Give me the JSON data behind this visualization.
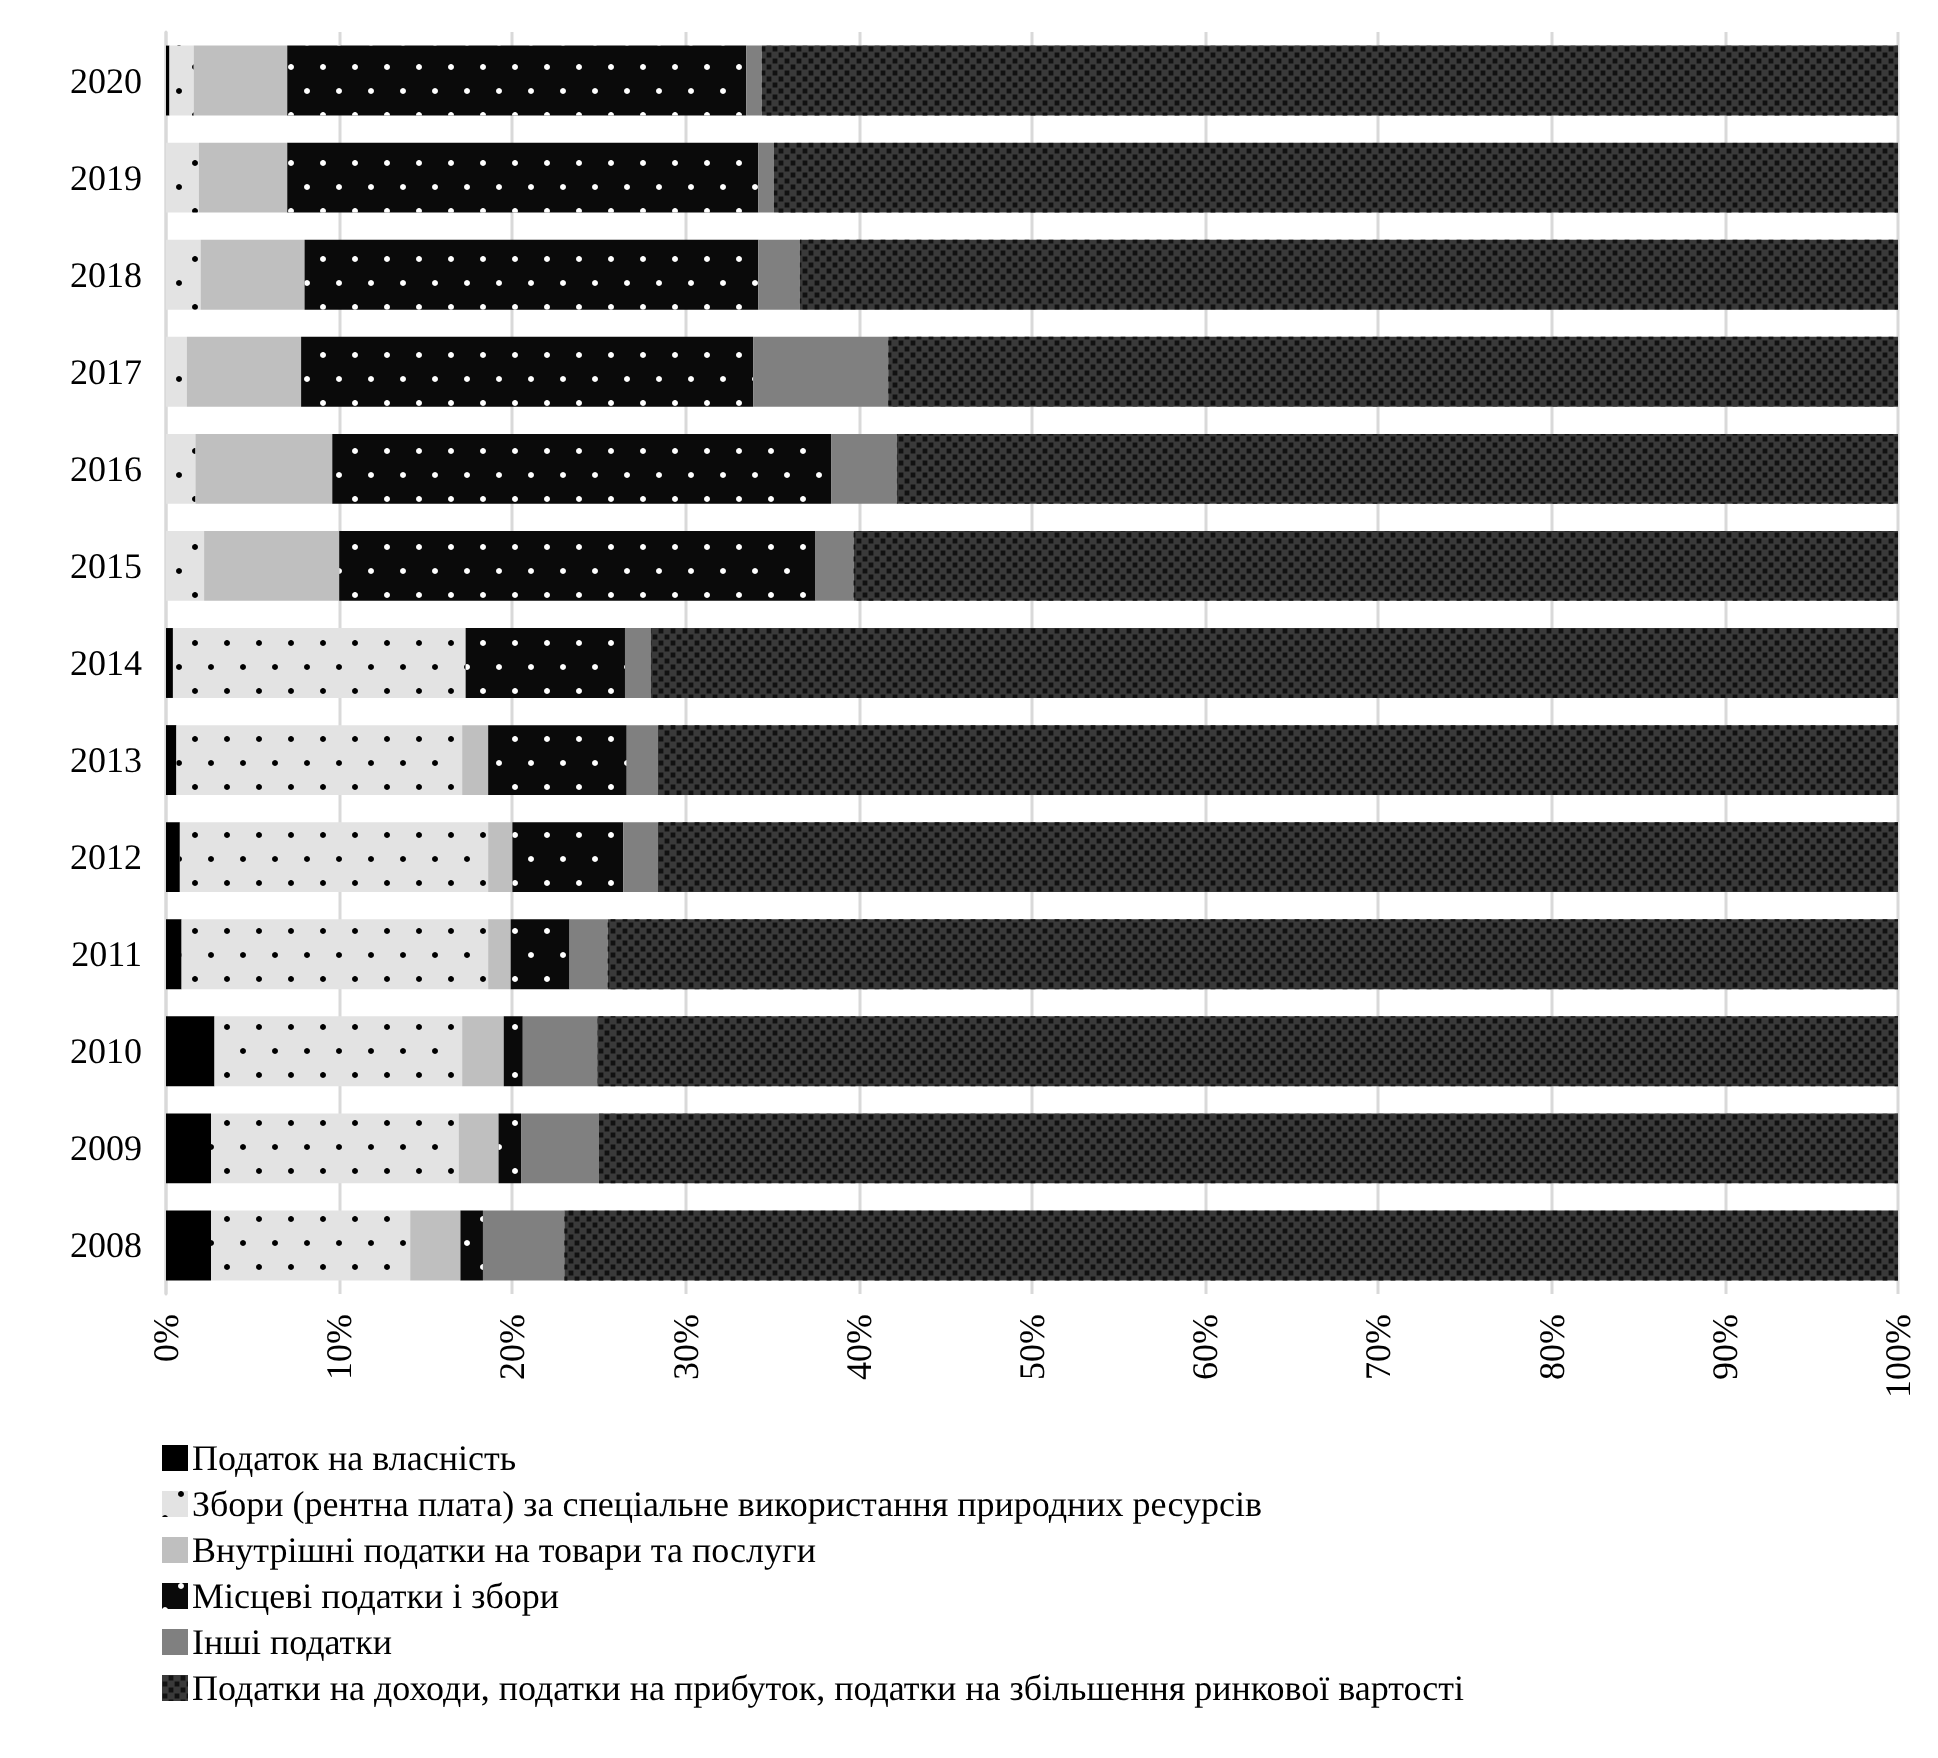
{
  "chart_data": {
    "type": "bar",
    "orientation": "horizontal",
    "stacked": true,
    "categories": [
      "2020",
      "2019",
      "2018",
      "2017",
      "2016",
      "2015",
      "2014",
      "2013",
      "2012",
      "2011",
      "2010",
      "2009",
      "2008"
    ],
    "series": [
      {
        "name": "Податок на власність",
        "color": "#000000",
        "values": [
          0.2,
          0,
          0,
          0,
          0,
          0,
          0.4,
          0.6,
          0.8,
          0.9,
          2.8,
          2.6,
          2.6
        ]
      },
      {
        "name": "Збори (рентна плата) за спеціальне використання природних ресурсів",
        "color": "#e3e3e3",
        "values": [
          1.4,
          1.9,
          2.0,
          1.2,
          1.7,
          2.2,
          16.9,
          16.5,
          17.8,
          17.7,
          14.3,
          14.3,
          11.5
        ]
      },
      {
        "name": "Внутрішні податки на товари та послуги",
        "color": "#bfbfbf",
        "values": [
          5.4,
          5.1,
          6.0,
          6.6,
          7.9,
          7.8,
          0,
          1.5,
          1.4,
          1.3,
          2.4,
          2.3,
          2.9
        ]
      },
      {
        "name": "Місцеві податки і збори",
        "color": "#0a0a0a",
        "values": [
          26.5,
          27.2,
          26.2,
          26.1,
          28.8,
          27.5,
          9.2,
          8.0,
          6.4,
          3.4,
          1.1,
          1.3,
          1.3
        ]
      },
      {
        "name": "Інші податки",
        "color": "#808080",
        "values": [
          0.9,
          0.9,
          2.4,
          7.8,
          3.8,
          2.2,
          1.5,
          1.8,
          2.0,
          2.2,
          4.3,
          4.5,
          4.7
        ]
      },
      {
        "name": "Податки на доходи, податки на прибуток, податки на збільшення ринкової вартості",
        "color": "#3a3a3a",
        "values": [
          65.6,
          64.9,
          63.4,
          58.3,
          57.8,
          60.3,
          72.0,
          71.6,
          71.6,
          74.5,
          75.1,
          75.0,
          77.0
        ]
      }
    ],
    "xlim": [
      0,
      100
    ],
    "xticks": [
      {
        "value": 0,
        "label": "0%"
      },
      {
        "value": 10,
        "label": "10%"
      },
      {
        "value": 20,
        "label": "20%"
      },
      {
        "value": 30,
        "label": "30%"
      },
      {
        "value": 40,
        "label": "40%"
      },
      {
        "value": 50,
        "label": "50%"
      },
      {
        "value": 60,
        "label": "60%"
      },
      {
        "value": 70,
        "label": "70%"
      },
      {
        "value": 80,
        "label": "80%"
      },
      {
        "value": 90,
        "label": "90%"
      },
      {
        "value": 100,
        "label": "100%"
      }
    ],
    "grid": "x",
    "legend": "bottom left"
  }
}
